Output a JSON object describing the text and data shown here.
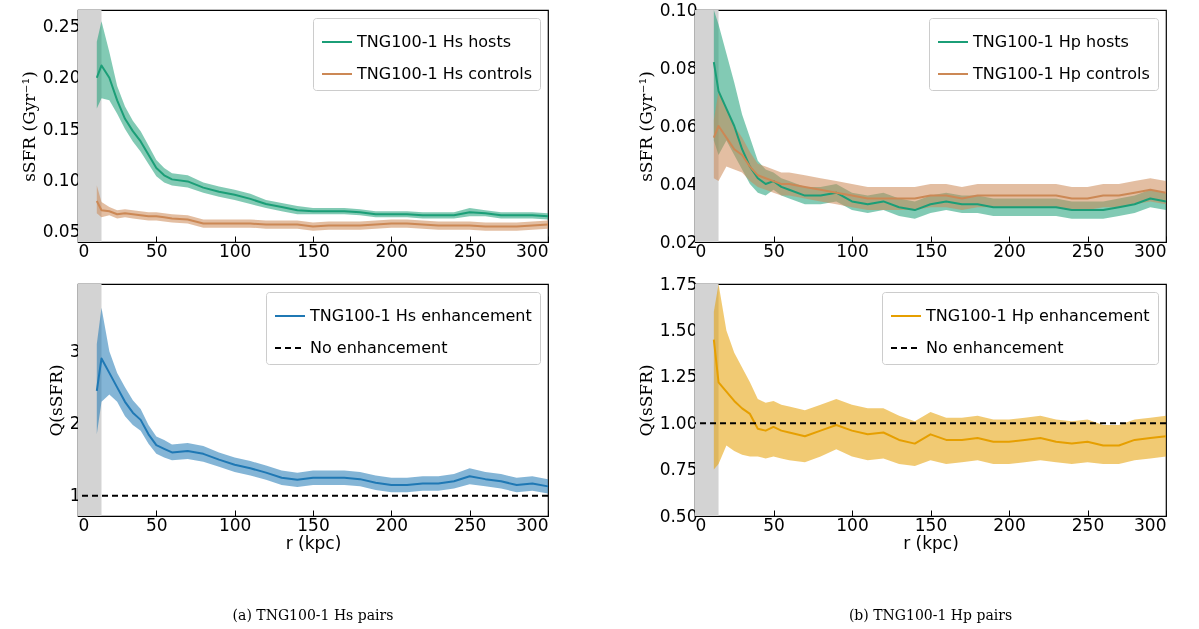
{
  "chart_data": [
    {
      "type": "line",
      "ylabel": "sSFR (Gyr⁻¹)",
      "legend": "top right",
      "xlim": [
        0,
        300
      ],
      "xticks": [
        0,
        50,
        100,
        150,
        200,
        250,
        300
      ],
      "ylim": [
        0.04,
        0.266
      ],
      "yticks": [
        {
          "value": 0.05,
          "label": "0.05"
        },
        {
          "value": 0.1,
          "label": "0.10"
        },
        {
          "value": 0.15,
          "label": "0.15"
        },
        {
          "value": 0.2,
          "label": "0.20"
        },
        {
          "value": 0.25,
          "label": "0.25"
        }
      ],
      "x": [
        12,
        15,
        20,
        25,
        30,
        35,
        40,
        45,
        50,
        55,
        60,
        70,
        80,
        90,
        100,
        110,
        120,
        130,
        140,
        150,
        160,
        170,
        180,
        190,
        200,
        210,
        220,
        230,
        240,
        250,
        260,
        270,
        280,
        290,
        300
      ],
      "bands": [
        {
          "axis": "x",
          "from": 0,
          "to": 15,
          "color": "#d3d3d3"
        }
      ],
      "series": [
        {
          "name": "TNG100-1 Hs hosts",
          "color": "#1b9e77",
          "values": [
            0.2,
            0.212,
            0.2,
            0.178,
            0.16,
            0.148,
            0.138,
            0.125,
            0.112,
            0.105,
            0.101,
            0.099,
            0.093,
            0.089,
            0.086,
            0.082,
            0.077,
            0.074,
            0.071,
            0.07,
            0.07,
            0.07,
            0.069,
            0.067,
            0.067,
            0.067,
            0.066,
            0.066,
            0.066,
            0.069,
            0.068,
            0.066,
            0.066,
            0.066,
            0.065
          ],
          "lower": [
            0.17,
            0.18,
            0.178,
            0.165,
            0.15,
            0.138,
            0.128,
            0.116,
            0.104,
            0.098,
            0.095,
            0.093,
            0.088,
            0.084,
            0.081,
            0.077,
            0.073,
            0.07,
            0.067,
            0.067,
            0.067,
            0.067,
            0.066,
            0.064,
            0.064,
            0.064,
            0.063,
            0.063,
            0.063,
            0.065,
            0.065,
            0.063,
            0.063,
            0.063,
            0.062
          ],
          "upper": [
            0.235,
            0.255,
            0.225,
            0.192,
            0.172,
            0.158,
            0.148,
            0.134,
            0.12,
            0.112,
            0.107,
            0.105,
            0.098,
            0.094,
            0.091,
            0.087,
            0.081,
            0.078,
            0.075,
            0.073,
            0.073,
            0.073,
            0.072,
            0.07,
            0.07,
            0.07,
            0.069,
            0.069,
            0.069,
            0.073,
            0.071,
            0.069,
            0.069,
            0.069,
            0.068
          ]
        },
        {
          "name": "TNG100-1 Hs controls",
          "color": "#cc8855",
          "values": [
            0.08,
            0.071,
            0.07,
            0.067,
            0.068,
            0.067,
            0.066,
            0.065,
            0.065,
            0.064,
            0.063,
            0.062,
            0.058,
            0.058,
            0.058,
            0.058,
            0.057,
            0.057,
            0.057,
            0.055,
            0.056,
            0.056,
            0.056,
            0.057,
            0.058,
            0.058,
            0.057,
            0.056,
            0.056,
            0.056,
            0.055,
            0.055,
            0.055,
            0.056,
            0.057
          ],
          "lower": [
            0.068,
            0.064,
            0.066,
            0.063,
            0.064,
            0.063,
            0.062,
            0.061,
            0.061,
            0.06,
            0.059,
            0.058,
            0.054,
            0.054,
            0.054,
            0.054,
            0.053,
            0.053,
            0.053,
            0.051,
            0.052,
            0.052,
            0.052,
            0.053,
            0.054,
            0.054,
            0.053,
            0.052,
            0.052,
            0.052,
            0.051,
            0.051,
            0.051,
            0.052,
            0.053
          ],
          "upper": [
            0.095,
            0.079,
            0.074,
            0.071,
            0.072,
            0.071,
            0.07,
            0.069,
            0.069,
            0.068,
            0.067,
            0.066,
            0.062,
            0.062,
            0.062,
            0.062,
            0.061,
            0.061,
            0.061,
            0.059,
            0.06,
            0.06,
            0.06,
            0.061,
            0.062,
            0.062,
            0.061,
            0.06,
            0.06,
            0.06,
            0.059,
            0.059,
            0.059,
            0.06,
            0.061
          ]
        }
      ]
    },
    {
      "type": "line",
      "ylabel": "sSFR (Gyr⁻¹)",
      "legend": "top right",
      "xlim": [
        0,
        300
      ],
      "xticks": [
        0,
        50,
        100,
        150,
        200,
        250,
        300
      ],
      "ylim": [
        0.02,
        0.1
      ],
      "yticks": [
        0.02,
        0.04,
        0.06,
        0.08,
        {
          "value": 0.1,
          "label": "0.10"
        }
      ],
      "x": [
        12,
        15,
        20,
        25,
        30,
        35,
        40,
        45,
        50,
        55,
        60,
        70,
        80,
        90,
        100,
        110,
        120,
        130,
        140,
        150,
        160,
        170,
        180,
        190,
        200,
        210,
        220,
        230,
        240,
        250,
        260,
        270,
        280,
        290,
        300
      ],
      "bands": [
        {
          "axis": "x",
          "from": 0,
          "to": 15,
          "color": "#d3d3d3"
        }
      ],
      "series": [
        {
          "name": "TNG100-1 Hp hosts",
          "color": "#1b9e77",
          "values": [
            0.082,
            0.072,
            0.066,
            0.06,
            0.052,
            0.046,
            0.042,
            0.04,
            0.041,
            0.039,
            0.038,
            0.036,
            0.036,
            0.037,
            0.034,
            0.033,
            0.034,
            0.032,
            0.031,
            0.033,
            0.034,
            0.033,
            0.033,
            0.032,
            0.032,
            0.032,
            0.032,
            0.032,
            0.031,
            0.031,
            0.031,
            0.032,
            0.033,
            0.035,
            0.034
          ],
          "lower": [
            0.055,
            0.05,
            0.055,
            0.05,
            0.045,
            0.04,
            0.037,
            0.036,
            0.038,
            0.036,
            0.035,
            0.033,
            0.033,
            0.034,
            0.031,
            0.03,
            0.031,
            0.029,
            0.028,
            0.03,
            0.031,
            0.03,
            0.03,
            0.029,
            0.029,
            0.029,
            0.029,
            0.029,
            0.028,
            0.028,
            0.028,
            0.029,
            0.03,
            0.032,
            0.031
          ],
          "upper": [
            0.1,
            0.095,
            0.085,
            0.075,
            0.064,
            0.056,
            0.048,
            0.045,
            0.044,
            0.042,
            0.041,
            0.039,
            0.039,
            0.04,
            0.037,
            0.036,
            0.037,
            0.035,
            0.034,
            0.036,
            0.037,
            0.036,
            0.036,
            0.035,
            0.035,
            0.035,
            0.035,
            0.035,
            0.034,
            0.034,
            0.034,
            0.035,
            0.036,
            0.038,
            0.037
          ]
        },
        {
          "name": "TNG100-1 Hp controls",
          "color": "#cc8855",
          "values": [
            0.056,
            0.06,
            0.056,
            0.052,
            0.05,
            0.046,
            0.043,
            0.042,
            0.041,
            0.04,
            0.04,
            0.039,
            0.038,
            0.037,
            0.036,
            0.035,
            0.035,
            0.035,
            0.035,
            0.036,
            0.036,
            0.035,
            0.036,
            0.036,
            0.036,
            0.036,
            0.036,
            0.036,
            0.035,
            0.035,
            0.036,
            0.036,
            0.037,
            0.038,
            0.037
          ],
          "lower": [
            0.042,
            0.041,
            0.046,
            0.045,
            0.044,
            0.041,
            0.039,
            0.038,
            0.037,
            0.036,
            0.036,
            0.035,
            0.034,
            0.033,
            0.032,
            0.031,
            0.031,
            0.031,
            0.031,
            0.032,
            0.032,
            0.031,
            0.032,
            0.032,
            0.032,
            0.032,
            0.032,
            0.032,
            0.031,
            0.031,
            0.032,
            0.032,
            0.033,
            0.034,
            0.033
          ],
          "upper": [
            0.062,
            0.072,
            0.066,
            0.06,
            0.056,
            0.051,
            0.047,
            0.046,
            0.045,
            0.044,
            0.044,
            0.043,
            0.042,
            0.041,
            0.04,
            0.039,
            0.039,
            0.039,
            0.039,
            0.04,
            0.04,
            0.039,
            0.04,
            0.04,
            0.04,
            0.04,
            0.04,
            0.04,
            0.039,
            0.039,
            0.04,
            0.04,
            0.041,
            0.042,
            0.041
          ]
        }
      ]
    },
    {
      "type": "line",
      "xlabel": "r (kpc)",
      "ylabel": "Q(sSFR)",
      "legend": "top right",
      "xlim": [
        0,
        300
      ],
      "xticks": [
        0,
        50,
        100,
        150,
        200,
        250,
        300
      ],
      "ylim": [
        0.72,
        3.93
      ],
      "yticks": [
        1,
        2,
        3
      ],
      "annotations": [
        "(a) TNG100-1 Hs pairs"
      ],
      "x": [
        12,
        15,
        20,
        25,
        30,
        35,
        40,
        45,
        50,
        55,
        60,
        70,
        80,
        90,
        100,
        110,
        120,
        130,
        140,
        150,
        160,
        170,
        180,
        190,
        200,
        210,
        220,
        230,
        240,
        250,
        260,
        270,
        280,
        290,
        300
      ],
      "bands": [
        {
          "axis": "x",
          "from": 0,
          "to": 15,
          "color": "#d3d3d3"
        }
      ],
      "ref_lines": [
        {
          "axis": "y",
          "value": 1,
          "label": "No enhancement",
          "color": "#000000",
          "line_style": "dashed"
        }
      ],
      "series": [
        {
          "name": "TNG100-1 Hs enhancement",
          "color": "#1f78b4",
          "values": [
            2.45,
            2.9,
            2.7,
            2.5,
            2.3,
            2.15,
            2.05,
            1.85,
            1.7,
            1.65,
            1.6,
            1.62,
            1.58,
            1.5,
            1.43,
            1.38,
            1.32,
            1.25,
            1.22,
            1.25,
            1.25,
            1.25,
            1.23,
            1.18,
            1.15,
            1.15,
            1.17,
            1.17,
            1.2,
            1.27,
            1.23,
            1.2,
            1.15,
            1.17,
            1.13
          ],
          "lower": [
            1.85,
            2.3,
            2.4,
            2.3,
            2.1,
            1.98,
            1.9,
            1.72,
            1.58,
            1.53,
            1.49,
            1.51,
            1.47,
            1.4,
            1.33,
            1.28,
            1.22,
            1.15,
            1.12,
            1.15,
            1.15,
            1.15,
            1.13,
            1.08,
            1.05,
            1.05,
            1.07,
            1.07,
            1.1,
            1.16,
            1.13,
            1.1,
            1.05,
            1.07,
            1.03
          ],
          "upper": [
            3.1,
            3.6,
            3.0,
            2.7,
            2.5,
            2.32,
            2.2,
            1.98,
            1.82,
            1.77,
            1.71,
            1.73,
            1.69,
            1.6,
            1.53,
            1.48,
            1.42,
            1.35,
            1.32,
            1.35,
            1.35,
            1.35,
            1.33,
            1.28,
            1.25,
            1.25,
            1.27,
            1.27,
            1.3,
            1.38,
            1.33,
            1.3,
            1.25,
            1.27,
            1.23
          ]
        }
      ]
    },
    {
      "type": "line",
      "xlabel": "r (kpc)",
      "ylabel": "Q(sSFR)",
      "legend": "top right",
      "xlim": [
        0,
        300
      ],
      "xticks": [
        0,
        50,
        100,
        150,
        200,
        250,
        300
      ],
      "ylim": [
        0.5,
        1.75
      ],
      "yticks": [
        {
          "value": 0.5,
          "label": "0.50"
        },
        0.75,
        {
          "value": 1,
          "label": "1.00"
        },
        1.25,
        {
          "value": 1.5,
          "label": "1.50"
        },
        1.75
      ],
      "annotations": [
        "(b) TNG100-1 Hp pairs"
      ],
      "x": [
        12,
        15,
        20,
        25,
        30,
        35,
        40,
        45,
        50,
        55,
        60,
        70,
        80,
        90,
        100,
        110,
        120,
        130,
        140,
        150,
        160,
        170,
        180,
        190,
        200,
        210,
        220,
        230,
        240,
        250,
        260,
        270,
        280,
        290,
        300
      ],
      "bands": [
        {
          "axis": "x",
          "from": 0,
          "to": 15,
          "color": "#d3d3d3"
        }
      ],
      "ref_lines": [
        {
          "axis": "y",
          "value": 1,
          "label": "No enhancement",
          "color": "#000000",
          "line_style": "dashed"
        }
      ],
      "series": [
        {
          "name": "TNG100-1 Hp enhancement",
          "color": "#e69f00",
          "values": [
            1.45,
            1.22,
            1.17,
            1.12,
            1.08,
            1.05,
            0.97,
            0.96,
            0.98,
            0.96,
            0.95,
            0.93,
            0.96,
            0.99,
            0.96,
            0.94,
            0.95,
            0.91,
            0.89,
            0.94,
            0.91,
            0.91,
            0.92,
            0.9,
            0.9,
            0.91,
            0.92,
            0.9,
            0.89,
            0.9,
            0.88,
            0.88,
            0.91,
            0.92,
            0.93
          ],
          "lower": [
            0.75,
            0.78,
            0.88,
            0.85,
            0.83,
            0.82,
            0.82,
            0.81,
            0.82,
            0.81,
            0.8,
            0.79,
            0.82,
            0.86,
            0.82,
            0.8,
            0.81,
            0.78,
            0.77,
            0.8,
            0.78,
            0.79,
            0.8,
            0.78,
            0.78,
            0.79,
            0.8,
            0.79,
            0.78,
            0.79,
            0.78,
            0.78,
            0.8,
            0.81,
            0.82
          ],
          "upper": [
            1.6,
            1.75,
            1.5,
            1.38,
            1.3,
            1.22,
            1.13,
            1.11,
            1.12,
            1.1,
            1.09,
            1.07,
            1.1,
            1.13,
            1.1,
            1.08,
            1.08,
            1.04,
            1.01,
            1.06,
            1.03,
            1.03,
            1.04,
            1.02,
            1.02,
            1.03,
            1.04,
            1.02,
            1.01,
            1.02,
            0.99,
            0.99,
            1.02,
            1.03,
            1.04
          ]
        }
      ]
    }
  ]
}
